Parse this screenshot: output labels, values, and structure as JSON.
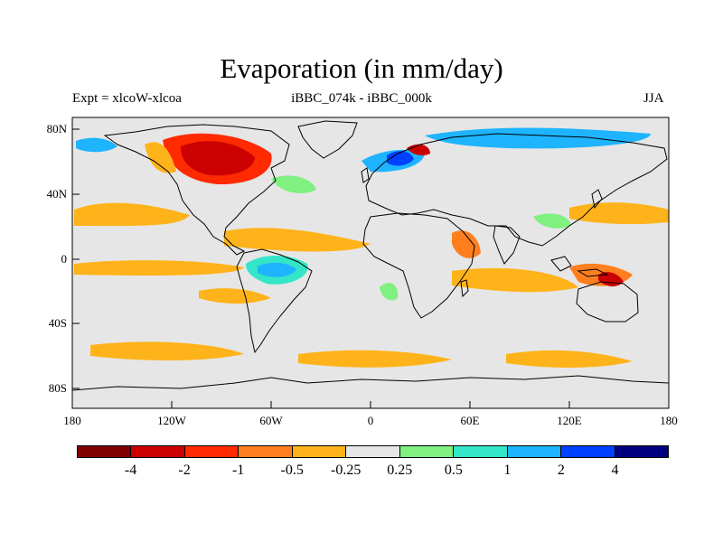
{
  "figure": {
    "title": "Evaporation (in mm/day)",
    "subtitle_left": "Expt = xlcoW-xlcoa",
    "subtitle_center": "iBBC_074k - iBBC_000k",
    "subtitle_right": "JJA"
  },
  "map": {
    "projection": "equirectangular",
    "lon_range": [
      -180,
      180
    ],
    "lat_range": [
      -90,
      90
    ],
    "x_ticks": [
      "180",
      "120W",
      "60W",
      "0",
      "60E",
      "120E",
      "180"
    ],
    "y_ticks": [
      "80N",
      "40N",
      "0",
      "40S",
      "80S"
    ],
    "background_color": "#e6e6e6",
    "coastline_color": "#000000"
  },
  "colorbar": {
    "colors": [
      "#7f0000",
      "#cc0000",
      "#ff2a00",
      "#ff7f1e",
      "#ffb31a",
      "#e6e6e6",
      "#80f080",
      "#33e6c8",
      "#1eb4ff",
      "#0040ff",
      "#000080"
    ],
    "labels": [
      "-4",
      "-2",
      "-1",
      "-0.5",
      "-0.25",
      "0.25",
      "0.5",
      "1",
      "2",
      "4"
    ]
  },
  "regions": [
    {
      "name": "north-canada-strong-negative",
      "color": "#cc0000"
    },
    {
      "name": "north-canada-moderate-negative",
      "color": "#ff2a00"
    },
    {
      "name": "scandinavia-positive",
      "color": "#0040ff"
    },
    {
      "name": "arctic-positive",
      "color": "#1eb4ff"
    },
    {
      "name": "amazon-positive",
      "color": "#1eb4ff"
    },
    {
      "name": "tropical-atlantic-negative",
      "color": "#ffb31a"
    },
    {
      "name": "southern-ocean-negative",
      "color": "#ffb31a"
    },
    {
      "name": "maritime-continent-negative",
      "color": "#ff7f1e"
    }
  ]
}
